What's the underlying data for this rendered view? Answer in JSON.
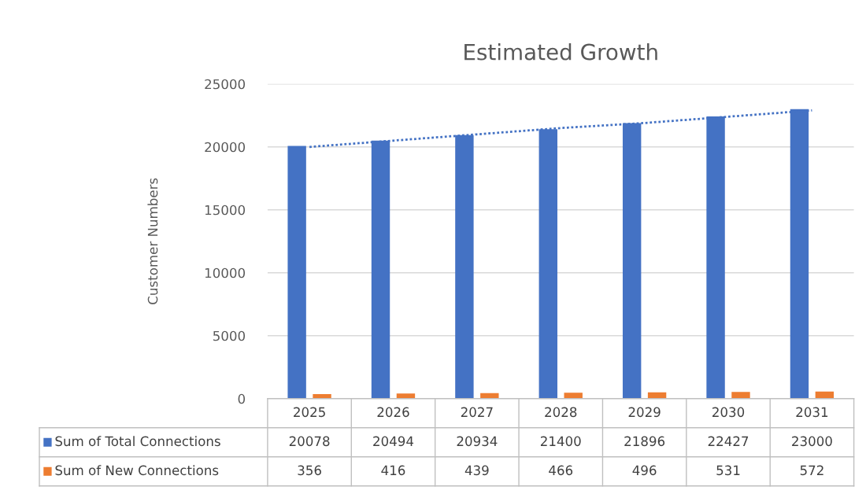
{
  "chart_data": {
    "type": "bar",
    "title": "Estimated Growth",
    "ylabel": "Customer Numbers",
    "categories": [
      "2025",
      "2026",
      "2027",
      "2028",
      "2029",
      "2030",
      "2031"
    ],
    "series": [
      {
        "name": "Sum of Total Connections",
        "color": "#4472c4",
        "values": [
          20078,
          20494,
          20934,
          21400,
          21896,
          22427,
          23000
        ],
        "value_labels": [
          "20078",
          "20494",
          "20934",
          "21400",
          "21896",
          "22427",
          "23000"
        ]
      },
      {
        "name": "Sum of New Connections",
        "color": "#ed7d31",
        "values": [
          356,
          416,
          439,
          466,
          496,
          531,
          572
        ],
        "value_labels": [
          "356",
          "416",
          "439",
          "466",
          "496",
          "531",
          "572"
        ]
      },
      {
        "type": "line",
        "color": "#4472c4",
        "line_style": "dotted",
        "values": [
          20000,
          20500,
          21000,
          21500,
          21900,
          22400,
          22900
        ]
      }
    ],
    "ylim": [
      0,
      25000
    ],
    "yticks": [
      0,
      5000,
      10000,
      15000,
      20000,
      25000
    ],
    "grid": "y",
    "legend": "bottom"
  }
}
